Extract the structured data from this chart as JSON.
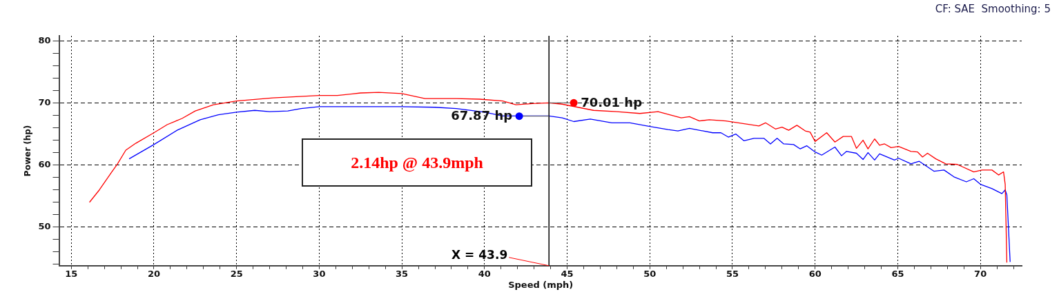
{
  "chart_data": {
    "type": "line",
    "xlabel": "Speed (mph)",
    "ylabel": "Power (hp)",
    "xlim": [
      14.3,
      72.5
    ],
    "ylim": [
      43.8,
      80.8
    ],
    "xticks": [
      15,
      {
        "value": 16,
        "label": null
      },
      {
        "value": 17,
        "label": null
      },
      {
        "value": 18,
        "label": null
      },
      {
        "value": 19,
        "label": null
      },
      20,
      {
        "value": 21,
        "label": null
      },
      {
        "value": 22,
        "label": null
      },
      {
        "value": 23,
        "label": null
      },
      {
        "value": 24,
        "label": null
      },
      25,
      {
        "value": 26,
        "label": null
      },
      {
        "value": 27,
        "label": null
      },
      {
        "value": 28,
        "label": null
      },
      {
        "value": 29,
        "label": null
      },
      30,
      {
        "value": 31,
        "label": null
      },
      {
        "value": 32,
        "label": null
      },
      {
        "value": 33,
        "label": null
      },
      {
        "value": 34,
        "label": null
      },
      35,
      {
        "value": 36,
        "label": null
      },
      {
        "value": 37,
        "label": null
      },
      {
        "value": 38,
        "label": null
      },
      {
        "value": 39,
        "label": null
      },
      40,
      {
        "value": 41,
        "label": null
      },
      {
        "value": 42,
        "label": null
      },
      {
        "value": 43,
        "label": null
      },
      {
        "value": 44,
        "label": null
      },
      45,
      {
        "value": 46,
        "label": null
      },
      {
        "value": 47,
        "label": null
      },
      {
        "value": 48,
        "label": null
      },
      {
        "value": 49,
        "label": null
      },
      50,
      {
        "value": 51,
        "label": null
      },
      {
        "value": 52,
        "label": null
      },
      {
        "value": 53,
        "label": null
      },
      {
        "value": 54,
        "label": null
      },
      55,
      {
        "value": 56,
        "label": null
      },
      {
        "value": 57,
        "label": null
      },
      {
        "value": 58,
        "label": null
      },
      {
        "value": 59,
        "label": null
      },
      60,
      {
        "value": 61,
        "label": null
      },
      {
        "value": 62,
        "label": null
      },
      {
        "value": 63,
        "label": null
      },
      {
        "value": 64,
        "label": null
      },
      65,
      {
        "value": 66,
        "label": null
      },
      {
        "value": 67,
        "label": null
      },
      {
        "value": 68,
        "label": null
      },
      {
        "value": 69,
        "label": null
      },
      70,
      {
        "value": 71,
        "label": null
      },
      {
        "value": 72,
        "label": null
      }
    ],
    "yticks": [
      {
        "value": 44,
        "label": null
      },
      {
        "value": 46,
        "label": null
      },
      {
        "value": 48,
        "label": null
      },
      50,
      {
        "value": 52,
        "label": null
      },
      {
        "value": 54,
        "label": null
      },
      {
        "value": 56,
        "label": null
      },
      {
        "value": 58,
        "label": null
      },
      60,
      {
        "value": 62,
        "label": null
      },
      {
        "value": 64,
        "label": null
      },
      {
        "value": 66,
        "label": null
      },
      {
        "value": 68,
        "label": null
      },
      70,
      {
        "value": 72,
        "label": null
      },
      {
        "value": 74,
        "label": null
      },
      {
        "value": 76,
        "label": null
      },
      {
        "value": 78,
        "label": null
      },
      80
    ],
    "grid": true,
    "marker": "none",
    "line_style": "solid",
    "series": [
      {
        "color": "#ff0000",
        "x": [
          16.1,
          16.7,
          17.4,
          17.8,
          18.3,
          18.9,
          20.0,
          20.8,
          21.7,
          22.5,
          23.6,
          25.0,
          27.2,
          30.0,
          31.1,
          32.5,
          33.6,
          35.0,
          36.4,
          38.3,
          39.7,
          41.1,
          41.9,
          42.9,
          43.9,
          44.7,
          46.6,
          48.0,
          49.4,
          50.5,
          51.9,
          52.4,
          53.0,
          53.6,
          54.6,
          56.6,
          57.0,
          57.6,
          58.0,
          58.4,
          58.9,
          59.4,
          59.7,
          60.0,
          60.7,
          61.2,
          61.7,
          62.2,
          62.5,
          62.9,
          63.2,
          63.6,
          63.9,
          64.2,
          64.6,
          65.05,
          65.8,
          66.2,
          66.5,
          66.8,
          67.3,
          67.9,
          68.6,
          69.6,
          70.1,
          70.7,
          71.1,
          71.4,
          71.5,
          71.6
        ],
        "values": [
          54.0,
          56.0,
          58.7,
          60.2,
          62.4,
          63.5,
          65.2,
          66.5,
          67.5,
          68.7,
          69.7,
          70.3,
          70.8,
          71.2,
          71.2,
          71.6,
          71.7,
          71.5,
          70.7,
          70.7,
          70.6,
          70.3,
          69.7,
          69.9,
          70.0,
          69.8,
          68.8,
          68.6,
          68.3,
          68.6,
          67.6,
          67.8,
          67.1,
          67.3,
          67.1,
          66.3,
          66.8,
          65.8,
          66.1,
          65.6,
          66.4,
          65.5,
          65.3,
          63.8,
          65.2,
          63.7,
          64.6,
          64.6,
          62.7,
          64.0,
          62.6,
          64.2,
          63.2,
          63.4,
          62.8,
          63.0,
          62.2,
          62.1,
          61.3,
          61.9,
          61.0,
          60.2,
          60.1,
          58.9,
          59.2,
          59.2,
          58.4,
          58.9,
          56.9,
          44.3
        ]
      },
      {
        "color": "#0000ff",
        "x": [
          18.5,
          20.0,
          21.4,
          22.8,
          23.9,
          25.0,
          26.1,
          27.0,
          28.1,
          28.9,
          30.0,
          32.8,
          34.9,
          37.0,
          38.3,
          40.0,
          41.1,
          43.9,
          44.7,
          45.4,
          46.4,
          47.7,
          48.8,
          50.0,
          51.1,
          51.7,
          52.4,
          53.8,
          54.3,
          54.75,
          55.2,
          55.7,
          56.3,
          56.9,
          57.3,
          57.7,
          58.1,
          58.7,
          59.1,
          59.5,
          60.0,
          60.4,
          61.2,
          61.6,
          61.9,
          62.5,
          62.9,
          63.2,
          63.6,
          63.9,
          64.8,
          65.05,
          65.8,
          66.3,
          67.2,
          67.8,
          68.4,
          69.15,
          69.6,
          70.0,
          70.7,
          71.3,
          71.5,
          71.6,
          71.8
        ],
        "values": [
          61.0,
          63.3,
          65.6,
          67.3,
          68.1,
          68.5,
          68.8,
          68.6,
          68.7,
          69.1,
          69.4,
          69.4,
          69.4,
          69.3,
          69.1,
          68.5,
          67.9,
          67.9,
          67.6,
          67.0,
          67.4,
          66.8,
          66.8,
          66.2,
          65.7,
          65.5,
          65.9,
          65.2,
          65.2,
          64.5,
          65.0,
          63.9,
          64.3,
          64.3,
          63.4,
          64.3,
          63.4,
          63.3,
          62.6,
          63.1,
          62.1,
          61.6,
          62.9,
          61.5,
          62.2,
          61.9,
          60.9,
          62.0,
          60.8,
          61.8,
          60.8,
          61.1,
          60.2,
          60.6,
          59.0,
          59.2,
          58.1,
          57.3,
          57.8,
          56.9,
          56.2,
          55.4,
          56.0,
          55.2,
          44.4
        ]
      }
    ],
    "ref_lines": [
      {
        "axis": "x",
        "value": 43.9,
        "label": "X = 43.9",
        "color": "#000000"
      }
    ],
    "annotations": [
      "CF: SAE  Smoothing: 5",
      "2.14hp @ 43.9mph",
      {
        "text": "70.01 hp",
        "x": 45.4,
        "y": 70.01
      },
      {
        "text": "67.87 hp",
        "x": 42.1,
        "y": 67.87
      }
    ]
  }
}
